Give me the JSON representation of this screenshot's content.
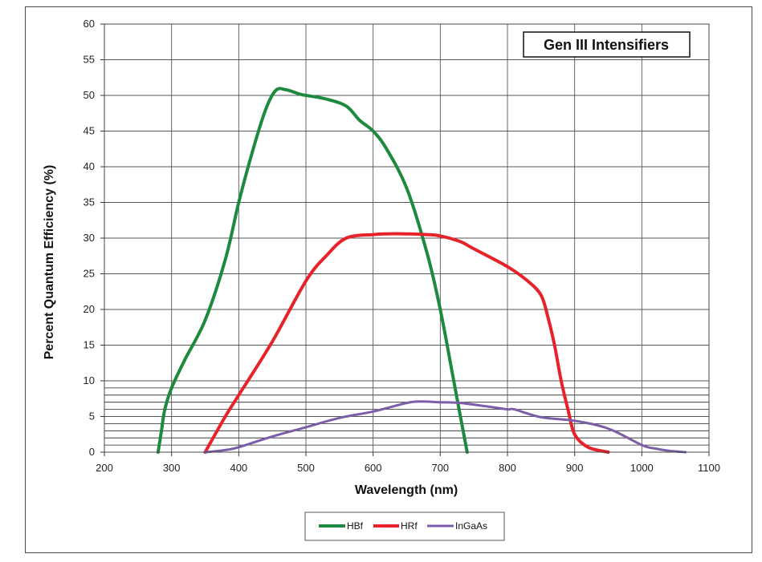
{
  "chart_data": {
    "type": "line",
    "title": "Gen III Intensifiers",
    "xlabel": "Wavelength (nm)",
    "ylabel": "Percent Quantum Efficiency (%)",
    "xlim": [
      200,
      1100
    ],
    "ylim": [
      0,
      60
    ],
    "x_ticks": [
      200,
      300,
      400,
      500,
      600,
      700,
      800,
      900,
      1000,
      1100
    ],
    "y_ticks": [
      0,
      5,
      10,
      15,
      20,
      25,
      30,
      35,
      40,
      45,
      50,
      55,
      60
    ],
    "minor_y_gridlines": [
      1,
      2,
      3,
      4,
      6,
      7,
      8,
      9
    ],
    "grid": true,
    "legend_position": "bottom",
    "colors": {
      "HBf": "#1e8a3e",
      "HRf": "#e8222a",
      "InGaAs": "#7b5ea7"
    },
    "series": [
      {
        "name": "HBf",
        "x": [
          280,
          285,
          290,
          300,
          320,
          350,
          380,
          400,
          420,
          440,
          455,
          470,
          490,
          500,
          530,
          560,
          580,
          600,
          620,
          650,
          680,
          700,
          720,
          730,
          740
        ],
        "y": [
          0,
          3,
          6,
          9,
          13,
          18.5,
          27,
          35,
          42,
          48,
          50.7,
          50.8,
          50.2,
          50,
          49.5,
          48.5,
          46.5,
          45,
          42.5,
          37,
          28,
          20,
          10,
          5,
          0
        ]
      },
      {
        "name": "HRf",
        "x": [
          350,
          380,
          400,
          450,
          500,
          530,
          560,
          600,
          620,
          650,
          680,
          700,
          730,
          750,
          800,
          830,
          850,
          860,
          870,
          880,
          890,
          900,
          920,
          950
        ],
        "y": [
          0,
          5,
          8,
          15.5,
          24,
          27.5,
          30,
          30.5,
          30.6,
          30.6,
          30.5,
          30.3,
          29.5,
          28.5,
          26,
          24,
          22,
          19,
          15,
          10,
          6,
          2.5,
          0.7,
          0
        ]
      },
      {
        "name": "InGaAs",
        "x": [
          350,
          380,
          400,
          450,
          500,
          550,
          600,
          650,
          670,
          700,
          730,
          770,
          800,
          810,
          850,
          900,
          950,
          1000,
          1020,
          1040,
          1065
        ],
        "y": [
          0,
          0.3,
          0.7,
          2.2,
          3.5,
          4.8,
          5.7,
          6.9,
          7.1,
          7.0,
          6.9,
          6.4,
          6.0,
          6.0,
          4.9,
          4.4,
          3.3,
          1,
          0.5,
          0.2,
          0
        ]
      }
    ]
  }
}
